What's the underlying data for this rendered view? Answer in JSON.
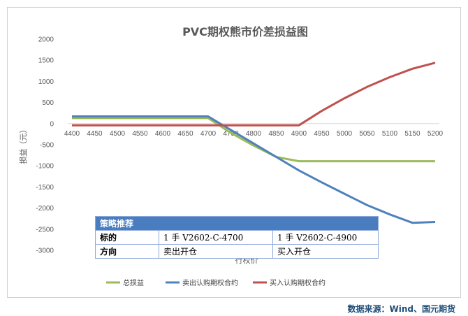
{
  "chart_data": {
    "type": "line",
    "title": "PVC期权熊市价差损益图",
    "xlabel": "行权价",
    "ylabel": "损益（元）",
    "x": [
      4400,
      4450,
      4500,
      4550,
      4600,
      4650,
      4700,
      4750,
      4800,
      4850,
      4900,
      4950,
      5000,
      5050,
      5100,
      5150,
      5200
    ],
    "ylim": [
      -3000,
      2000
    ],
    "yticks": [
      2000,
      1500,
      1000,
      500,
      0,
      -500,
      -1000,
      -1500,
      -2000,
      -2500,
      -3000
    ],
    "series": [
      {
        "name": "总损益",
        "color": "#9bbb59",
        "values": [
          130,
          130,
          130,
          130,
          130,
          130,
          130,
          -220,
          -520,
          -790,
          -890,
          -890,
          -890,
          -890,
          -890,
          -890,
          -890
        ]
      },
      {
        "name": "卖出认购期权合约",
        "color": "#4f81bd",
        "values": [
          170,
          170,
          170,
          170,
          170,
          170,
          170,
          -150,
          -470,
          -790,
          -1110,
          -1390,
          -1660,
          -1930,
          -2150,
          -2350,
          -2330
        ]
      },
      {
        "name": "买入认购期权合约",
        "color": "#c0504d",
        "values": [
          -40,
          -40,
          -40,
          -40,
          -40,
          -40,
          -40,
          -40,
          -40,
          -40,
          -40,
          300,
          600,
          870,
          1100,
          1300,
          1440
        ]
      }
    ],
    "legend_position": "bottom",
    "grid": false
  },
  "strategy_table": {
    "title": "策略推荐",
    "row1": {
      "label": "标的",
      "leg1": "1 手 V2602-C-4700",
      "leg2": "1 手 V2602-C-4900"
    },
    "row2": {
      "label": "方向",
      "leg1": "卖出开仓",
      "leg2": "买入开仓"
    }
  },
  "source": "数据来源：Wind、国元期货"
}
